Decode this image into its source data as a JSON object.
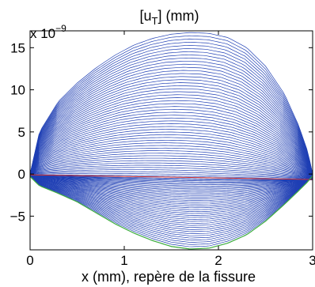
{
  "chart_data": {
    "type": "line",
    "title": "[u_T] (mm)",
    "title_main": "[u",
    "title_sub": "T",
    "title_tail": "] (mm)",
    "xlabel": "x (mm), repère de la fissure",
    "ylabel": "",
    "y_multiplier": "x 10",
    "y_multiplier_exp": "−9",
    "xlim": [
      0,
      3
    ],
    "ylim": [
      -9,
      17
    ],
    "x_ticks": [
      0,
      1,
      2,
      3
    ],
    "x_tick_labels": [
      "0",
      "1",
      "2",
      "3"
    ],
    "y_ticks": [
      -5,
      0,
      5,
      10,
      15
    ],
    "y_tick_labels": [
      "−5",
      "0",
      "5",
      "10",
      "15"
    ],
    "grid": false,
    "legend": "none",
    "curve_count_upper": 52,
    "curve_count_lower": 40,
    "series": [
      {
        "x": [
          0,
          0.1,
          0.3,
          0.5,
          0.7,
          0.9,
          1.1,
          1.3,
          1.5,
          1.7,
          1.9,
          2.1,
          2.3,
          2.5,
          2.7,
          2.85,
          2.95,
          3.0
        ],
        "values": [
          0,
          5.0,
          8.6,
          10.8,
          12.6,
          14.1,
          15.3,
          16.1,
          16.6,
          16.8,
          16.7,
          16.2,
          15.0,
          12.8,
          9.5,
          5.8,
          2.6,
          0
        ]
      },
      {
        "x": [
          0,
          0.1,
          0.3,
          0.5,
          0.7,
          0.9,
          1.1,
          1.3,
          1.5,
          1.7,
          1.9,
          2.1,
          2.3,
          2.5,
          2.7,
          2.85,
          2.95,
          3.0
        ],
        "values": [
          -0.3,
          -1.4,
          -2.3,
          -3.3,
          -4.6,
          -5.9,
          -7.0,
          -7.9,
          -8.6,
          -8.9,
          -8.8,
          -8.2,
          -7.2,
          -5.6,
          -3.6,
          -2.0,
          -0.9,
          -0.2
        ]
      }
    ],
    "colors": {
      "family": "#1f3fb4",
      "green_curve": "#3fae3f",
      "red_curve": "#d03030"
    }
  }
}
